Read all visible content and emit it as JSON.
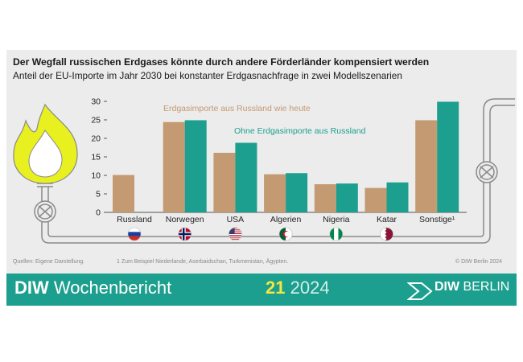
{
  "header": {
    "title": "Der Wegfall russischen Erdgases könnte durch andere Förderländer kompensiert werden",
    "subtitle": "Anteil der EU-Importe im Jahr 2030 bei konstanter Erdgasnachfrage in zwei Modellszenarien"
  },
  "notes": {
    "source": "Quellen: Eigene Darstellung.",
    "footnote": "1  Zum Beispiel Niederlande, Aserbaidschan, Turkmenistan, Ägypten.",
    "copyright": "© DIW Berlin 2024"
  },
  "footer": {
    "brand_bold": "DIW",
    "brand_rest": " Wochenbericht",
    "issue_number": "21",
    "issue_year": "2024",
    "logo_bold": "DIW",
    "logo_rest": " BERLIN"
  },
  "colors": {
    "scenario_current": "#c39a72",
    "scenario_no_russia": "#1c9f8e",
    "flame_outer": "#e8f020",
    "pipe": "#888888"
  },
  "chart_data": {
    "type": "bar",
    "title": "Der Wegfall russischen Erdgases könnte durch andere Förderländer kompensiert werden",
    "subtitle": "Anteil der EU-Importe im Jahr 2030 bei konstanter Erdgasnachfrage in zwei Modellszenarien",
    "xlabel": "",
    "ylabel": "",
    "ylim": [
      0,
      30
    ],
    "yticks": [
      0,
      5,
      10,
      15,
      20,
      25,
      30
    ],
    "grid": false,
    "categories": [
      "Russland",
      "Norwegen",
      "USA",
      "Algerien",
      "Nigeria",
      "Katar",
      "Sonstige¹"
    ],
    "flags": [
      "flag-russia",
      "flag-norway",
      "flag-usa",
      "flag-algeria",
      "flag-nigeria",
      "flag-qatar",
      "none"
    ],
    "series": [
      {
        "name": "Erdgasimporte aus Russland wie heute",
        "values": [
          10.1,
          24.4,
          16.1,
          10.3,
          7.6,
          6.6,
          24.9
        ]
      },
      {
        "name": "Ohne Erdgasimporte aus Russland",
        "values": [
          0,
          24.9,
          18.8,
          10.6,
          7.8,
          8.1,
          29.9
        ]
      }
    ]
  }
}
